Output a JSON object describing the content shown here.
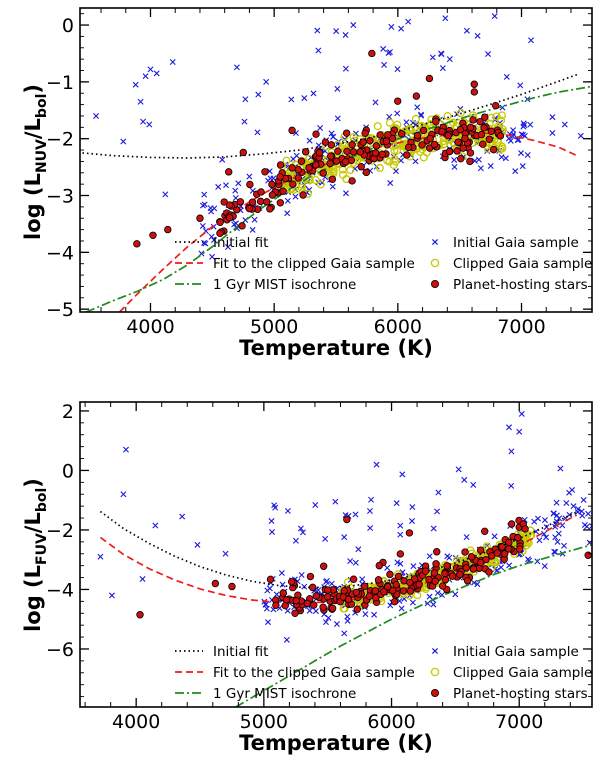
{
  "chart_data": [
    {
      "type": "scatter",
      "xlabel": "Temperature (K)",
      "ylabel_main": "log (L",
      "ylabel_sub1": "NUV",
      "ylabel_mid": "/L",
      "ylabel_sub2": "bol",
      "ylabel_end": ")",
      "xlim": [
        3430,
        7570
      ],
      "ylim": [
        -5.05,
        0.3
      ],
      "xticks": [
        4000,
        5000,
        6000,
        7000
      ],
      "yticks": [
        -5,
        -4,
        -3,
        -2,
        -1,
        0
      ],
      "colors": {
        "initial_fit": "#000000",
        "clipped_fit": "#ee1c1c",
        "isochrone": "#1c8c1c",
        "gaia": "#1a1adf",
        "clipped": "#c8c800",
        "planet_fill": "#cc1010"
      },
      "legend": {
        "left": [
          "Initial fit",
          "Fit to the clipped Gaia sample",
          "1 Gyr MIST isochrone"
        ],
        "right": [
          "Initial Gaia sample",
          "Clipped Gaia sample",
          "Planet-hosting stars"
        ]
      },
      "series": [
        {
          "name": "Initial fit",
          "kind": "line",
          "style": "dotted",
          "x": [
            3450,
            3700,
            4000,
            4300,
            4600,
            4900,
            5200,
            5500,
            5800,
            6100,
            6400,
            6700,
            7000,
            7300,
            7450
          ],
          "y": [
            -2.25,
            -2.3,
            -2.33,
            -2.34,
            -2.32,
            -2.27,
            -2.2,
            -2.1,
            -1.97,
            -1.81,
            -1.63,
            -1.43,
            -1.22,
            -0.99,
            -0.87
          ]
        },
        {
          "name": "Fit to the clipped Gaia sample",
          "kind": "line",
          "style": "dashed",
          "x": [
            3750,
            3900,
            4100,
            4300,
            4500,
            4700,
            4900,
            5100,
            5300,
            5500,
            5700,
            5900,
            6100,
            6300,
            6500,
            6700,
            6900,
            7100,
            7300,
            7450
          ],
          "y": [
            -5.05,
            -4.72,
            -4.3,
            -3.9,
            -3.55,
            -3.25,
            -2.98,
            -2.75,
            -2.55,
            -2.38,
            -2.24,
            -2.12,
            -2.03,
            -1.96,
            -1.92,
            -1.9,
            -1.94,
            -2.03,
            -2.15,
            -2.3
          ]
        },
        {
          "name": "1 Gyr MIST isochrone",
          "kind": "line",
          "style": "dashdot",
          "x": [
            3480,
            3700,
            3900,
            4100,
            4300,
            4500,
            4700,
            4900,
            5100,
            5300,
            5500,
            5700,
            5900,
            6100,
            6300,
            6500,
            6700,
            6900,
            7100,
            7300,
            7570
          ],
          "y": [
            -5.05,
            -4.85,
            -4.68,
            -4.48,
            -4.22,
            -3.9,
            -3.55,
            -3.22,
            -2.92,
            -2.66,
            -2.44,
            -2.25,
            -2.08,
            -1.93,
            -1.79,
            -1.65,
            -1.52,
            -1.4,
            -1.28,
            -1.18,
            -1.08
          ]
        }
      ]
    },
    {
      "type": "scatter",
      "xlabel": "Temperature (K)",
      "ylabel_main": "log (L",
      "ylabel_sub1": "FUV",
      "ylabel_mid": "/L",
      "ylabel_sub2": "bol",
      "ylabel_end": ")",
      "xlim": [
        3560,
        7570
      ],
      "ylim": [
        -7.95,
        2.3
      ],
      "xticks": [
        4000,
        5000,
        6000,
        7000
      ],
      "yticks": [
        -6,
        -4,
        -2,
        0,
        2
      ],
      "colors": {
        "initial_fit": "#000000",
        "clipped_fit": "#ee1c1c",
        "isochrone": "#1c8c1c",
        "gaia": "#1a1adf",
        "clipped": "#c8c800",
        "planet_fill": "#cc1010"
      },
      "legend": {
        "left": [
          "Initial fit",
          "Fit to the clipped Gaia sample",
          "1 Gyr MIST isochrone"
        ],
        "right": [
          "Initial Gaia sample",
          "Clipped Gaia sample",
          "Planet-hosting stars"
        ]
      },
      "series": [
        {
          "name": "Initial fit",
          "kind": "line",
          "style": "dotted",
          "x": [
            3720,
            3900,
            4100,
            4300,
            4500,
            4700,
            4900,
            5100,
            5300,
            5500,
            5700,
            5900,
            6100,
            6300,
            6500,
            6700,
            6900,
            7100,
            7300,
            7450
          ],
          "y": [
            -1.38,
            -1.95,
            -2.45,
            -2.88,
            -3.23,
            -3.51,
            -3.72,
            -3.86,
            -3.93,
            -3.93,
            -3.87,
            -3.76,
            -3.59,
            -3.37,
            -3.11,
            -2.81,
            -2.47,
            -2.1,
            -1.7,
            -1.4
          ]
        },
        {
          "name": "Fit to the clipped Gaia sample",
          "kind": "line",
          "style": "dashed",
          "x": [
            3720,
            3900,
            4100,
            4300,
            4500,
            4700,
            4900,
            5100,
            5300,
            5500,
            5700,
            5900,
            6100,
            6300,
            6500,
            6700,
            6900,
            7100,
            7300,
            7450
          ],
          "y": [
            -2.25,
            -2.82,
            -3.3,
            -3.68,
            -3.98,
            -4.2,
            -4.35,
            -4.43,
            -4.45,
            -4.42,
            -4.33,
            -4.18,
            -3.98,
            -3.74,
            -3.45,
            -3.11,
            -2.73,
            -2.3,
            -1.83,
            -1.5
          ]
        },
        {
          "name": "1 Gyr MIST isochrone",
          "kind": "line",
          "style": "dashdot",
          "x": [
            4780,
            5000,
            5200,
            5400,
            5600,
            5800,
            6000,
            6200,
            6400,
            6600,
            6800,
            7000,
            7200,
            7400,
            7570
          ],
          "y": [
            -7.95,
            -7.4,
            -6.9,
            -6.4,
            -5.9,
            -5.45,
            -5.0,
            -4.6,
            -4.2,
            -3.85,
            -3.5,
            -3.2,
            -2.95,
            -2.7,
            -2.5
          ]
        }
      ]
    }
  ]
}
